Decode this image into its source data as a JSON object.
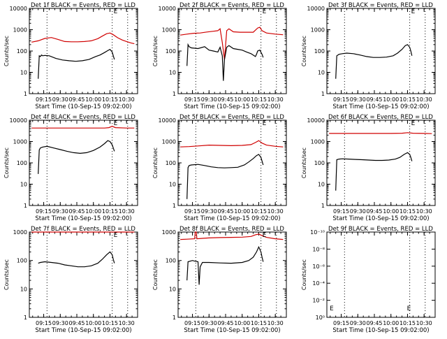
{
  "chart_data": [
    {
      "type": "line",
      "title": "Det 1f BLACK = Events, RED = LLD",
      "xlabel": "Start Time (10-Sep-15 09:02:00)",
      "ylabel": "Counts/sec",
      "yscale": "log",
      "ylim": [
        1,
        10000
      ],
      "y_ticks": [
        "1",
        "10",
        "100",
        "1000",
        "10000"
      ],
      "x_ticks": [
        "09:15",
        "09:30",
        "09:45",
        "10:00",
        "10:15",
        "10:30"
      ],
      "xlim": [
        "09:02",
        "10:40"
      ],
      "markers": [
        "09:18",
        "10:17",
        "10:31"
      ],
      "annotations": [
        "E"
      ],
      "series": [
        {
          "color": "#d00000",
          "x": [
            "09:04",
            "09:10",
            "09:16",
            "09:22",
            "09:28",
            "09:34",
            "09:40",
            "09:46",
            "09:52",
            "09:58",
            "10:04",
            "10:08",
            "10:12",
            "10:15",
            "10:18",
            "10:22",
            "10:26",
            "10:30",
            "10:34",
            "10:37"
          ],
          "values": [
            260,
            300,
            390,
            430,
            350,
            280,
            270,
            270,
            280,
            300,
            380,
            500,
            650,
            700,
            580,
            420,
            330,
            280,
            240,
            220
          ]
        },
        {
          "color": "#000000",
          "x": [
            "09:10",
            "09:11",
            "09:12",
            "09:13",
            "09:14",
            "09:16",
            "09:20",
            "09:26",
            "09:32",
            "09:38",
            "09:44",
            "09:50",
            "09:56",
            "10:02",
            "10:06",
            "10:10",
            "10:13",
            "10:15",
            "10:17",
            "10:18",
            "10:19"
          ],
          "values": [
            5,
            60,
            55,
            65,
            60,
            62,
            60,
            45,
            38,
            35,
            33,
            35,
            40,
            55,
            65,
            85,
            105,
            120,
            90,
            60,
            40
          ]
        }
      ]
    },
    {
      "type": "line",
      "title": "Det 2f BLACK = Events, RED = LLD",
      "xlabel": "Start Time (10-Sep-15 09:02:00)",
      "ylabel": "Counts/sec",
      "yscale": "log",
      "ylim": [
        1,
        10000
      ],
      "y_ticks": [
        "1",
        "10",
        "100",
        "1000",
        "10000"
      ],
      "x_ticks": [
        "09:15",
        "09:30",
        "09:45",
        "10:00",
        "10:15",
        "10:30"
      ],
      "xlim": [
        "09:02",
        "10:40"
      ],
      "markers": [
        "09:18",
        "10:17",
        "10:31"
      ],
      "annotations": [
        "E"
      ],
      "series": [
        {
          "color": "#d00000",
          "x": [
            "09:04",
            "09:10",
            "09:16",
            "09:22",
            "09:28",
            "09:34",
            "09:38",
            "09:40",
            "09:42",
            "09:44",
            "09:46",
            "09:48",
            "09:52",
            "09:58",
            "10:04",
            "10:10",
            "10:14",
            "10:16",
            "10:18",
            "10:22",
            "10:30",
            "10:37"
          ],
          "values": [
            560,
            620,
            680,
            700,
            780,
            850,
            900,
            1100,
            250,
            40,
            900,
            1100,
            800,
            760,
            760,
            760,
            1200,
            1300,
            900,
            700,
            620,
            580
          ]
        },
        {
          "color": "#000000",
          "x": [
            "09:10",
            "09:11",
            "09:12",
            "09:14",
            "09:20",
            "09:26",
            "09:30",
            "09:34",
            "09:38",
            "09:40",
            "09:42",
            "09:43",
            "09:44",
            "09:46",
            "09:48",
            "09:52",
            "09:56",
            "10:00",
            "10:04",
            "10:08",
            "10:12",
            "10:13",
            "10:14",
            "10:16",
            "10:18",
            "10:19"
          ],
          "values": [
            20,
            200,
            160,
            140,
            130,
            160,
            110,
            100,
            90,
            150,
            60,
            4,
            40,
            150,
            180,
            130,
            120,
            110,
            90,
            75,
            55,
            70,
            100,
            110,
            70,
            50
          ]
        }
      ]
    },
    {
      "type": "line",
      "title": "Det 3f BLACK = Events, RED = LLD",
      "xlabel": "Start Time (10-Sep-15 09:02:00)",
      "ylabel": "Counts/sec",
      "yscale": "log",
      "ylim": [
        1,
        10000
      ],
      "y_ticks": [
        "1",
        "10",
        "100",
        "1000",
        "10000"
      ],
      "x_ticks": [
        "09:15",
        "09:30",
        "09:45",
        "10:00",
        "10:15",
        "10:30"
      ],
      "xlim": [
        "09:02",
        "10:40"
      ],
      "markers": [
        "09:18",
        "10:17",
        "10:31"
      ],
      "annotations": [
        "E"
      ],
      "series": [
        {
          "color": "#000000",
          "x": [
            "09:10",
            "09:11",
            "09:13",
            "09:16",
            "09:20",
            "09:26",
            "09:32",
            "09:38",
            "09:44",
            "09:50",
            "09:56",
            "10:02",
            "10:06",
            "10:10",
            "10:13",
            "10:15",
            "10:17",
            "10:18",
            "10:19"
          ],
          "values": [
            5,
            60,
            70,
            75,
            80,
            75,
            65,
            55,
            50,
            50,
            52,
            60,
            80,
            120,
            180,
            200,
            150,
            100,
            60
          ]
        }
      ]
    },
    {
      "type": "line",
      "title": "Det 4f BLACK = Events, RED = LLD",
      "xlabel": "Start Time (10-Sep-15 09:02:00)",
      "ylabel": "Counts/sec",
      "yscale": "log",
      "ylim": [
        1,
        10000
      ],
      "y_ticks": [
        "1",
        "10",
        "100",
        "1000",
        "10000"
      ],
      "x_ticks": [
        "09:15",
        "09:30",
        "09:45",
        "10:00",
        "10:15",
        "10:30"
      ],
      "xlim": [
        "09:02",
        "10:40"
      ],
      "markers": [
        "09:18",
        "10:17",
        "10:31"
      ],
      "annotations": [
        "E"
      ],
      "series": [
        {
          "color": "#d00000",
          "x": [
            "09:04",
            "09:20",
            "09:40",
            "10:00",
            "10:10",
            "10:14",
            "10:17",
            "10:20",
            "10:30",
            "10:37"
          ],
          "values": [
            4300,
            4300,
            4300,
            4300,
            4300,
            4500,
            5200,
            4500,
            4300,
            4300
          ]
        },
        {
          "color": "#000000",
          "x": [
            "09:10",
            "09:11",
            "09:12",
            "09:14",
            "09:18",
            "09:24",
            "09:30",
            "09:36",
            "09:42",
            "09:48",
            "09:54",
            "10:00",
            "10:06",
            "10:10",
            "10:13",
            "10:15",
            "10:17",
            "10:18",
            "10:19"
          ],
          "values": [
            30,
            400,
            500,
            550,
            600,
            500,
            420,
            350,
            300,
            280,
            300,
            380,
            550,
            800,
            1100,
            1000,
            700,
            500,
            350
          ]
        }
      ]
    },
    {
      "type": "line",
      "title": "Det 5f BLACK = Events, RED = LLD",
      "xlabel": "Start Time (10-Sep-15 09:02:00)",
      "ylabel": "Counts/sec",
      "yscale": "log",
      "ylim": [
        1,
        10000
      ],
      "y_ticks": [
        "1",
        "10",
        "100",
        "1000",
        "10000"
      ],
      "x_ticks": [
        "09:15",
        "09:30",
        "09:45",
        "10:00",
        "10:15",
        "10:30"
      ],
      "xlim": [
        "09:02",
        "10:40"
      ],
      "markers": [
        "09:18",
        "10:17",
        "10:31"
      ],
      "annotations": [
        "E"
      ],
      "series": [
        {
          "color": "#d00000",
          "x": [
            "09:04",
            "09:12",
            "09:20",
            "09:30",
            "09:40",
            "09:50",
            "10:00",
            "10:08",
            "10:12",
            "10:15",
            "10:18",
            "10:22",
            "10:30",
            "10:37"
          ],
          "values": [
            560,
            580,
            620,
            680,
            660,
            640,
            660,
            720,
            900,
            1100,
            850,
            680,
            600,
            560
          ]
        },
        {
          "color": "#000000",
          "x": [
            "09:10",
            "09:11",
            "09:12",
            "09:14",
            "09:20",
            "09:26",
            "09:32",
            "09:38",
            "09:44",
            "09:50",
            "09:56",
            "10:02",
            "10:06",
            "10:10",
            "10:13",
            "10:15",
            "10:17",
            "10:18",
            "10:19"
          ],
          "values": [
            2,
            60,
            75,
            80,
            85,
            75,
            65,
            60,
            58,
            60,
            62,
            80,
            110,
            160,
            220,
            250,
            180,
            120,
            80
          ]
        }
      ]
    },
    {
      "type": "line",
      "title": "Det 6f BLACK = Events, RED = LLD",
      "xlabel": "Start Time (10-Sep-15 09:02:00)",
      "ylabel": "Counts/sec",
      "yscale": "log",
      "ylim": [
        1,
        10000
      ],
      "y_ticks": [
        "1",
        "10",
        "100",
        "1000",
        "10000"
      ],
      "x_ticks": [
        "09:15",
        "09:30",
        "09:45",
        "10:00",
        "10:15",
        "10:30"
      ],
      "xlim": [
        "09:02",
        "10:40"
      ],
      "markers": [
        "09:18",
        "10:17",
        "10:31"
      ],
      "annotations": [
        "E"
      ],
      "series": [
        {
          "color": "#d00000",
          "x": [
            "09:04",
            "09:20",
            "09:40",
            "10:00",
            "10:10",
            "10:15",
            "10:20",
            "10:30",
            "10:37"
          ],
          "values": [
            2400,
            2400,
            2400,
            2400,
            2450,
            2600,
            2450,
            2400,
            2350
          ]
        },
        {
          "color": "#000000",
          "x": [
            "09:10",
            "09:11",
            "09:13",
            "09:16",
            "09:22",
            "09:28",
            "09:34",
            "09:40",
            "09:46",
            "09:52",
            "09:58",
            "10:04",
            "10:08",
            "10:12",
            "10:15",
            "10:17",
            "10:18",
            "10:19"
          ],
          "values": [
            5,
            140,
            150,
            155,
            150,
            145,
            140,
            135,
            130,
            130,
            135,
            150,
            180,
            250,
            300,
            250,
            180,
            120
          ]
        }
      ]
    },
    {
      "type": "line",
      "title": "Det 7f BLACK = Events, RED = LLD",
      "xlabel": "Start Time (10-Sep-15 09:02:00)",
      "ylabel": "Counts/sec",
      "yscale": "log",
      "ylim": [
        1,
        1000
      ],
      "y_ticks": [
        "1",
        "10",
        "100",
        "1000"
      ],
      "x_ticks": [
        "09:15",
        "09:30",
        "09:45",
        "10:00",
        "10:15",
        "10:30"
      ],
      "xlim": [
        "09:02",
        "10:40"
      ],
      "markers": [
        "09:18",
        "10:17",
        "10:31"
      ],
      "annotations": [
        "E"
      ],
      "series": [
        {
          "color": "#d00000",
          "x": [
            "09:04",
            "09:20",
            "09:40",
            "10:00",
            "10:15",
            "10:30",
            "10:37"
          ],
          "values": [
            1000,
            1000,
            1000,
            1000,
            1000,
            1000,
            1000
          ]
        },
        {
          "color": "#000000",
          "x": [
            "09:10",
            "09:12",
            "09:16",
            "09:22",
            "09:28",
            "09:34",
            "09:40",
            "09:46",
            "09:52",
            "09:58",
            "10:04",
            "10:08",
            "10:12",
            "10:15",
            "10:17",
            "10:18",
            "10:19"
          ],
          "values": [
            80,
            85,
            90,
            85,
            80,
            70,
            65,
            60,
            60,
            65,
            80,
            110,
            160,
            200,
            160,
            110,
            80
          ]
        }
      ]
    },
    {
      "type": "line",
      "title": "Det 8f BLACK = Events, RED = LLD",
      "xlabel": "Start Time (10-Sep-15 09:02:00)",
      "ylabel": "Counts/sec",
      "yscale": "log",
      "ylim": [
        1,
        1000
      ],
      "y_ticks": [
        "1",
        "10",
        "100",
        "1000"
      ],
      "x_ticks": [
        "09:15",
        "09:30",
        "09:45",
        "10:00",
        "10:15",
        "10:30"
      ],
      "xlim": [
        "09:02",
        "10:40"
      ],
      "markers": [
        "09:18",
        "10:17",
        "10:31"
      ],
      "annotations": [
        "E"
      ],
      "series": [
        {
          "color": "#d00000",
          "x": [
            "09:04",
            "09:10",
            "09:17",
            "09:17.5",
            "09:18.5",
            "09:19",
            "09:24",
            "09:30",
            "09:40",
            "09:50",
            "10:00",
            "10:08",
            "10:12",
            "10:15",
            "10:18",
            "10:22",
            "10:30",
            "10:37"
          ],
          "values": [
            550,
            560,
            580,
            1000,
            1000,
            580,
            600,
            620,
            640,
            650,
            660,
            700,
            800,
            850,
            750,
            650,
            580,
            550
          ]
        },
        {
          "color": "#000000",
          "x": [
            "09:10",
            "09:11",
            "09:13",
            "09:15",
            "09:17",
            "09:20",
            "09:21",
            "09:22",
            "09:24",
            "09:30",
            "09:40",
            "09:50",
            "10:00",
            "10:06",
            "10:10",
            "10:13",
            "10:15",
            "10:17",
            "10:18",
            "10:19"
          ],
          "values": [
            20,
            90,
            95,
            100,
            95,
            90,
            14,
            60,
            85,
            85,
            82,
            80,
            85,
            100,
            130,
            200,
            300,
            200,
            130,
            90
          ]
        }
      ]
    },
    {
      "type": "line",
      "title": "Det 9f BLACK = Events, RED = LLD",
      "xlabel": "Start Time (10-Sep-15 09:02:00)",
      "ylabel": "Counts/sec",
      "yscale": "log",
      "ylim": [
        1,
        1e-10
      ],
      "y_ticks": [
        "10⁰",
        "10⁻²",
        "10⁻⁴",
        "10⁻⁶",
        "10⁻⁸",
        "10⁻¹⁰"
      ],
      "x_ticks": [
        "09:15",
        "09:30",
        "09:45",
        "10:00",
        "10:15",
        "10:30"
      ],
      "xlim": [
        "09:02",
        "10:40"
      ],
      "markers": [
        "09:18",
        "10:17",
        "10:31"
      ],
      "annotations": [
        "E",
        "E"
      ],
      "series": []
    }
  ]
}
